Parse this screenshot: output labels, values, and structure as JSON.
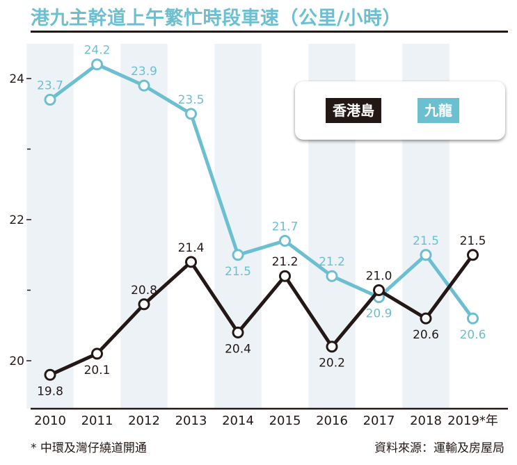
{
  "title": "港九主幹道上午繁忙時段車速（公里/小時）",
  "footnote": "* 中環及灣仔繞道開通",
  "source": "資料來源：運輸及房屋局",
  "colors": {
    "hong_kong_island": "#231815",
    "kowloon": "#6bbfd1",
    "band": "#edf2f7"
  },
  "legend": {
    "hong_kong_island": "香港島",
    "kowloon": "九龍"
  },
  "chart_data": {
    "type": "line",
    "x": [
      "2010",
      "2011",
      "2012",
      "2013",
      "2014",
      "2015",
      "2016",
      "2017",
      "2018",
      "2019*年"
    ],
    "y_ticks": [
      "20",
      "22",
      "24"
    ],
    "ylim": [
      19.4,
      24.6
    ],
    "series": [
      {
        "name": "香港島",
        "values": [
          19.8,
          20.1,
          20.8,
          21.4,
          20.4,
          21.2,
          20.2,
          21.0,
          20.6,
          21.5
        ],
        "labels": [
          "19.8",
          "20.1",
          "20.8",
          "21.4",
          "20.4",
          "21.2",
          "20.2",
          "21.0",
          "20.6",
          "21.5"
        ]
      },
      {
        "name": "九龍",
        "values": [
          23.7,
          24.2,
          23.9,
          23.5,
          21.5,
          21.7,
          21.2,
          20.9,
          21.5,
          20.6
        ],
        "labels": [
          "23.7",
          "24.2",
          "23.9",
          "23.5",
          "21.5",
          "21.7",
          "21.2",
          "20.9",
          "21.5",
          "20.6"
        ]
      }
    ],
    "grid": false,
    "legend_position": "top-right"
  }
}
